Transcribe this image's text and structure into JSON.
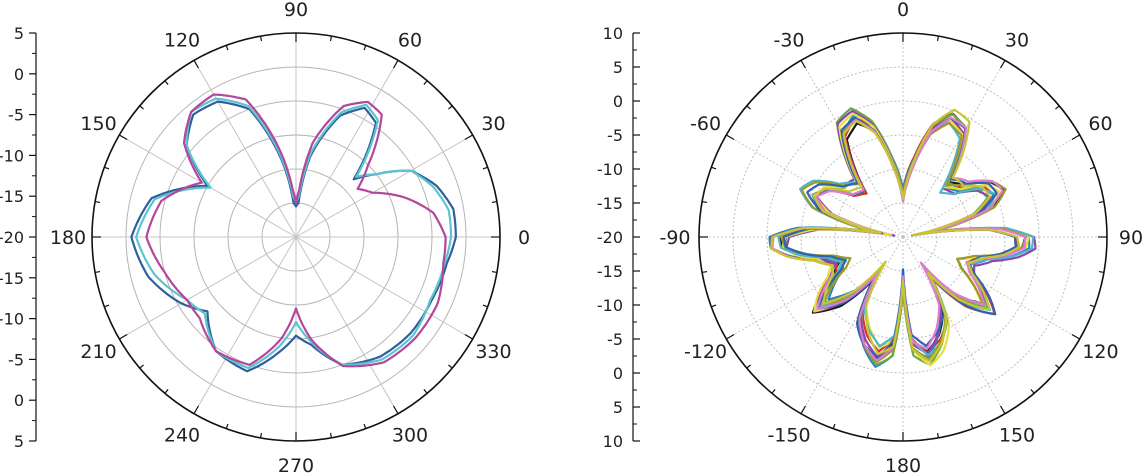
{
  "chart_data": [
    {
      "type": "polar-line",
      "title": "",
      "angle_ticks": [
        "0",
        "30",
        "60",
        "90",
        "120",
        "150",
        "180",
        "210",
        "240",
        "270",
        "300",
        "330"
      ],
      "angle_values": [
        0,
        30,
        60,
        90,
        120,
        150,
        180,
        210,
        240,
        270,
        300,
        330
      ],
      "angle_direction": "counterclockwise",
      "zero_position": "right",
      "radial_range": [
        -25,
        5
      ],
      "radial_scale_labels": [
        "5",
        "0",
        "-5",
        "-10",
        "-15",
        "-20",
        "-15",
        "-10",
        "-5",
        "0",
        "5"
      ],
      "grid": true,
      "legend": "none",
      "series": [
        {
          "color": "#2f5f9c",
          "theta": [
            0,
            10,
            20,
            30,
            38,
            45,
            55,
            62,
            70,
            80,
            86,
            90,
            94,
            100,
            110,
            120,
            130,
            140,
            150,
            165,
            180,
            195,
            210,
            220,
            235,
            250,
            262,
            270,
            278,
            290,
            305,
            320,
            335,
            350
          ],
          "r": [
            -1.5,
            -1.5,
            -3,
            -5.5,
            -10,
            -13,
            -4.5,
            -3.5,
            -6,
            -13,
            -20,
            -20.5,
            -20,
            -14,
            -5,
            -2,
            -1.5,
            -4,
            -10,
            -3,
            -0.8,
            -2.5,
            -5.5,
            -8,
            -4.5,
            -4,
            -8,
            -10.5,
            -9,
            -5,
            -3.5,
            -3,
            -3,
            -2.5
          ]
        },
        {
          "color": "#5cc4cf",
          "theta": [
            0,
            10,
            20,
            30,
            38,
            45,
            55,
            62,
            70,
            80,
            86,
            90,
            94,
            100,
            110,
            120,
            130,
            140,
            150,
            165,
            180,
            195,
            210,
            220,
            235,
            250,
            262,
            270,
            278,
            290,
            305,
            320,
            335,
            350
          ],
          "r": [
            -2.2,
            -2.2,
            -3.5,
            -5.5,
            -10,
            -12.5,
            -4,
            -3,
            -5.5,
            -12.5,
            -19,
            -20,
            -19,
            -13.5,
            -4.5,
            -1.5,
            -1,
            -4,
            -10.5,
            -3.5,
            -1.5,
            -3.5,
            -6.5,
            -7.5,
            -4.5,
            -4.5,
            -9,
            -12.5,
            -9.5,
            -5,
            -3,
            -2.5,
            -3.2,
            -2.8
          ]
        },
        {
          "color": "#b4479c",
          "theta": [
            0,
            10,
            20,
            30,
            38,
            45,
            55,
            62,
            70,
            80,
            86,
            90,
            94,
            100,
            110,
            120,
            130,
            140,
            150,
            165,
            180,
            195,
            210,
            220,
            235,
            250,
            262,
            270,
            278,
            290,
            305,
            320,
            335,
            350
          ],
          "r": [
            -3,
            -4.5,
            -8,
            -12,
            -13.5,
            -10,
            -3,
            -2.5,
            -4.5,
            -11,
            -18,
            -20,
            -18,
            -12.5,
            -3.5,
            -0.8,
            -1,
            -3.5,
            -9,
            -4.5,
            -3,
            -5,
            -6.5,
            -6.5,
            -4.5,
            -5,
            -10,
            -14.5,
            -10,
            -4.8,
            -2.5,
            -2,
            -2,
            -3
          ]
        }
      ]
    },
    {
      "type": "polar-line",
      "title": "",
      "angle_ticks": [
        "0",
        "30",
        "60",
        "90",
        "120",
        "150",
        "180",
        "-150",
        "-120",
        "-90",
        "-60",
        "-30"
      ],
      "angle_values": [
        0,
        30,
        60,
        90,
        120,
        150,
        180,
        -150,
        -120,
        -90,
        -60,
        -30
      ],
      "angle_direction": "clockwise",
      "zero_position": "top",
      "radial_range": [
        -20,
        10
      ],
      "radial_scale_labels": [
        "10",
        "5",
        "0",
        "-5",
        "-10",
        "-15",
        "-20",
        "-15",
        "-10",
        "-5",
        "0",
        "5",
        "10"
      ],
      "grid": true,
      "legend": "none",
      "base_shape": {
        "theta": [
          0,
          8,
          15,
          22,
          30,
          40,
          50,
          58,
          65,
          72,
          80,
          85,
          90,
          95,
          100,
          105,
          112,
          118,
          125,
          130,
          138,
          145,
          152,
          160,
          168,
          175,
          180,
          185,
          192,
          200,
          208,
          215,
          222,
          230,
          235,
          242,
          248,
          255,
          260,
          265,
          270,
          275,
          280,
          288,
          295,
          302,
          310,
          320,
          330,
          338,
          345,
          352
        ],
        "r": [
          -14,
          -9,
          -3.5,
          -1,
          -2,
          -10,
          -9,
          -6,
          -5,
          -7.5,
          -17,
          -6,
          -2,
          -2,
          -4.5,
          -8,
          -10,
          -9,
          -6,
          -4,
          -8,
          -14,
          -7,
          -4,
          -2,
          -4,
          -14,
          -4,
          -2,
          -4,
          -7,
          -14,
          -8,
          -4,
          -6,
          -9,
          -10,
          -8,
          -4.5,
          -2,
          -2,
          -6,
          -17,
          -7.5,
          -5,
          -6,
          -9,
          -10,
          -2,
          -1,
          -3.5,
          -9
        ]
      },
      "series": [
        {
          "color": "#1a1a1a"
        },
        {
          "color": "#d8322a"
        },
        {
          "color": "#2f7fbf"
        },
        {
          "color": "#6aa84f"
        },
        {
          "color": "#8e44ad"
        },
        {
          "color": "#e6df3a"
        },
        {
          "color": "#4fb6c9"
        },
        {
          "color": "#9c9a2c"
        },
        {
          "color": "#2e64b0"
        },
        {
          "color": "#e07bd0"
        },
        {
          "color": "#c9c431"
        }
      ]
    }
  ]
}
